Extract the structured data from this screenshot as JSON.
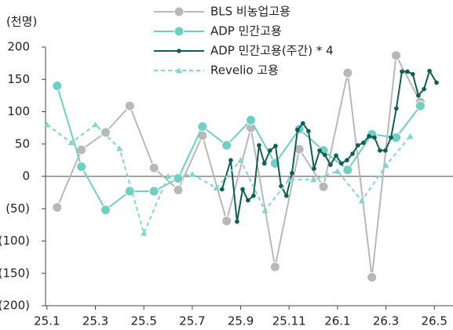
{
  "chart_data": {
    "type": "line",
    "y_label": "(천명)",
    "xlim": [
      -0.06,
      16.77
    ],
    "xticks": [
      {
        "value": 0,
        "label": "25.1"
      },
      {
        "value": 2,
        "label": "25.3"
      },
      {
        "value": 4,
        "label": "25.5"
      },
      {
        "value": 6,
        "label": "25.7"
      },
      {
        "value": 8,
        "label": "25.9"
      },
      {
        "value": 10,
        "label": "25.11"
      },
      {
        "value": 12,
        "label": "26.1"
      },
      {
        "value": 14,
        "label": "26.3"
      },
      {
        "value": 16,
        "label": "26.5"
      }
    ],
    "ylim": [
      -200,
      200
    ],
    "yticks": [
      200,
      150,
      100,
      50,
      0,
      {
        "value": -50,
        "label": "(50)"
      },
      {
        "value": -100,
        "label": "(100)"
      },
      {
        "value": -150,
        "label": "(150)"
      },
      {
        "value": -200,
        "label": "(200)"
      }
    ],
    "series": [
      {
        "name": "BLS 비농업고용",
        "color": "#b8b8b8",
        "marker": "circle",
        "dashed": false,
        "x": [
          0.42,
          1.42,
          2.42,
          3.42,
          4.42,
          5.42,
          6.42,
          7.42,
          8.42,
          9.42,
          10.42,
          11.42,
          12.42,
          13.42,
          14.42,
          15.42
        ],
        "values": [
          -48,
          41,
          68,
          109,
          13,
          -21,
          63,
          -69,
          75,
          -140,
          42,
          -16,
          160,
          -156,
          187,
          115
        ]
      },
      {
        "name": "ADP 민간고용",
        "color": "#6fcfc0",
        "marker": "circle",
        "dashed": false,
        "x": [
          0.42,
          1.42,
          2.42,
          3.42,
          4.42,
          5.42,
          6.42,
          7.42,
          8.42,
          9.42,
          10.42,
          11.42,
          12.42,
          13.42,
          14.42,
          15.42
        ],
        "values": [
          140,
          15,
          -52,
          -23,
          -23,
          -3,
          77,
          48,
          87,
          20,
          73,
          40,
          10,
          65,
          60,
          109
        ]
      },
      {
        "name": "ADP 민간고용(주간) * 4",
        "color": "#0f5e55",
        "marker": "small",
        "dashed": false,
        "x": [
          7.23,
          7.59,
          7.85,
          8.08,
          8.3,
          8.53,
          8.76,
          8.98,
          9.21,
          9.44,
          9.67,
          9.89,
          10.12,
          10.35,
          10.57,
          10.8,
          11.03,
          11.26,
          11.48,
          11.71,
          11.94,
          12.16,
          12.39,
          12.62,
          12.84,
          13.07,
          13.3,
          13.53,
          13.75,
          13.98,
          14.21,
          14.43,
          14.66,
          14.89,
          15.11,
          15.34,
          15.57,
          15.8,
          16.09
        ],
        "values": [
          -20,
          25,
          -70,
          -20,
          -37,
          -30,
          48,
          20,
          40,
          47,
          -15,
          -30,
          5,
          72,
          82,
          70,
          12,
          40,
          33,
          18,
          32,
          20,
          25,
          35,
          48,
          52,
          62,
          60,
          40,
          40,
          60,
          105,
          162,
          162,
          158,
          125,
          135,
          163,
          145
        ]
      },
      {
        "name": "Revelio 고용",
        "color": "#7fd6cb",
        "marker": "triangle",
        "dashed": true,
        "x": [
          0,
          1,
          2,
          3,
          4,
          5,
          6,
          7,
          8,
          9,
          10,
          11,
          12,
          13,
          14,
          15
        ],
        "values": [
          80,
          52,
          80,
          43,
          -88,
          0,
          3,
          -18,
          25,
          -53,
          -5,
          -5,
          8,
          -38,
          17,
          62
        ]
      }
    ]
  }
}
